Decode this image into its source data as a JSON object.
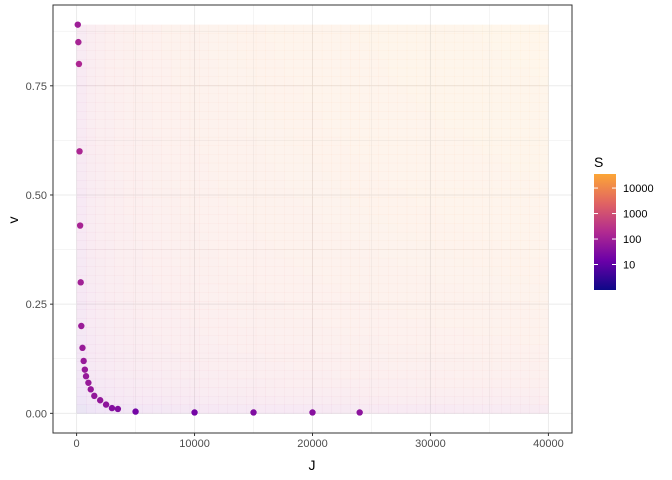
{
  "chart_data": {
    "type": "scatter",
    "title": "",
    "xlabel": "J",
    "ylabel": "v",
    "xlim": [
      -2000,
      42000
    ],
    "ylim": [
      -0.045,
      0.935
    ],
    "x_ticks": [
      0,
      10000,
      20000,
      30000,
      40000
    ],
    "x_tick_labels": [
      "0",
      "10000",
      "20000",
      "30000",
      "40000"
    ],
    "y_ticks": [
      0,
      0.25,
      0.5,
      0.75
    ],
    "y_tick_labels": [
      "0.00",
      "0.25",
      "0.50",
      "0.75"
    ],
    "grid": true,
    "background_field": {
      "description_values": "S = J * v shaded over the grid J in [0, 40000], v in [0, 0.89]",
      "j_range": [
        0,
        40000
      ],
      "v_range": [
        0,
        0.89
      ],
      "opacity": 0.1
    },
    "color_scale": {
      "name": "S",
      "scale": "log10",
      "palette": "plasma",
      "domain": [
        1,
        35600
      ],
      "breaks": [
        10,
        100,
        1000,
        10000
      ],
      "break_labels": [
        "10",
        "100",
        "1000",
        "10000"
      ],
      "colors": [
        "#0d0887",
        "#6a00a8",
        "#b12a90",
        "#e16462",
        "#fca636"
      ]
    },
    "series": [
      {
        "points": [
          {
            "x": 100,
            "v": 0.89
          },
          {
            "x": 150,
            "v": 0.85
          },
          {
            "x": 200,
            "v": 0.8
          },
          {
            "x": 250,
            "v": 0.6
          },
          {
            "x": 300,
            "v": 0.43
          },
          {
            "x": 350,
            "v": 0.3
          },
          {
            "x": 400,
            "v": 0.2
          },
          {
            "x": 500,
            "v": 0.15
          },
          {
            "x": 600,
            "v": 0.12
          },
          {
            "x": 700,
            "v": 0.1
          },
          {
            "x": 800,
            "v": 0.085
          },
          {
            "x": 1000,
            "v": 0.07
          },
          {
            "x": 1200,
            "v": 0.055
          },
          {
            "x": 1500,
            "v": 0.04
          },
          {
            "x": 2000,
            "v": 0.03
          },
          {
            "x": 2500,
            "v": 0.02
          },
          {
            "x": 3000,
            "v": 0.012
          },
          {
            "x": 3500,
            "v": 0.01
          },
          {
            "x": 5000,
            "v": 0.004
          },
          {
            "x": 10000,
            "v": 0.002
          },
          {
            "x": 15000,
            "v": 0.002
          },
          {
            "x": 20000,
            "v": 0.002
          },
          {
            "x": 24000,
            "v": 0.002
          }
        ]
      }
    ]
  }
}
